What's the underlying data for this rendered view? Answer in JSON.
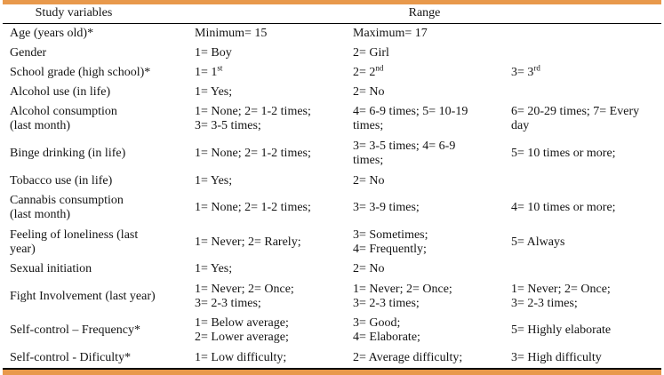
{
  "colors": {
    "accent": "#E8994C",
    "rule": "#000000",
    "background": "#ffffff",
    "text": "#141414"
  },
  "table": {
    "header": {
      "study_variables": "Study variables",
      "range": "Range"
    },
    "rows": [
      {
        "variable": "Age (years old)*",
        "cells": [
          {
            "text": "Minimum= 15"
          },
          {
            "text": "Maximum= 17"
          },
          {
            "text": ""
          }
        ]
      },
      {
        "variable": "Gender",
        "cells": [
          {
            "text": "1= Boy"
          },
          {
            "text": "2= Girl"
          },
          {
            "text": ""
          }
        ]
      },
      {
        "variable": "School grade (high school)*",
        "cells": [
          {
            "text": "1= 1",
            "sup": "st"
          },
          {
            "text": "2=  2",
            "sup": "nd"
          },
          {
            "text": "3= 3",
            "sup": "rd"
          }
        ]
      },
      {
        "variable": "Alcohol use (in life)",
        "cells": [
          {
            "text": "1= Yes;"
          },
          {
            "text": "2= No"
          },
          {
            "text": ""
          }
        ]
      },
      {
        "variable": "Alcohol consumption\n(last month)",
        "cells": [
          {
            "text": "1= None; 2= 1-2 times;\n3= 3-5 times;"
          },
          {
            "text": "4= 6-9 times; 5= 10-19\ntimes;"
          },
          {
            "text": "6= 20-29 times; 7= Every\nday"
          }
        ]
      },
      {
        "variable": "Binge drinking (in life)",
        "cells": [
          {
            "text": "1= None; 2= 1-2 times;"
          },
          {
            "text": "3= 3-5 times; 4= 6-9\ntimes;"
          },
          {
            "text": "5= 10 times or more;"
          }
        ]
      },
      {
        "variable": "Tobacco use (in life)",
        "cells": [
          {
            "text": "1= Yes;"
          },
          {
            "text": "2= No"
          },
          {
            "text": ""
          }
        ]
      },
      {
        "variable": "Cannabis consumption\n(last month)",
        "cells": [
          {
            "text": "1= None; 2= 1-2 times;"
          },
          {
            "text": "3= 3-9 times;"
          },
          {
            "text": "4= 10 times or more;"
          }
        ]
      },
      {
        "variable": "Feeling of loneliness (last\nyear)",
        "cells": [
          {
            "text": "1= Never; 2= Rarely;"
          },
          {
            "text": "3= Sometimes;\n4= Frequently;"
          },
          {
            "text": "5= Always"
          }
        ]
      },
      {
        "variable": "Sexual initiation",
        "cells": [
          {
            "text": "1= Yes;"
          },
          {
            "text": "2= No"
          },
          {
            "text": ""
          }
        ]
      },
      {
        "variable": "Fight Involvement (last year)",
        "cells": [
          {
            "text": "1= Never; 2= Once;\n3= 2-3 times;"
          },
          {
            "text": "1= Never; 2= Once;\n3= 2-3 times;"
          },
          {
            "text": "1= Never; 2= Once;\n3= 2-3 times;"
          }
        ]
      },
      {
        "variable": "Self-control – Frequency*",
        "cells": [
          {
            "text": "1= Below average;\n2= Lower average;"
          },
          {
            "text": "3= Good;\n4=  Elaborate;"
          },
          {
            "text": "5= Highly elaborate"
          }
        ]
      },
      {
        "variable": "Self-control - Dificulty*",
        "cells": [
          {
            "text": "1= Low difficulty;"
          },
          {
            "text": "2= Average difficulty;"
          },
          {
            "text": "3= High difficulty"
          }
        ]
      }
    ]
  }
}
